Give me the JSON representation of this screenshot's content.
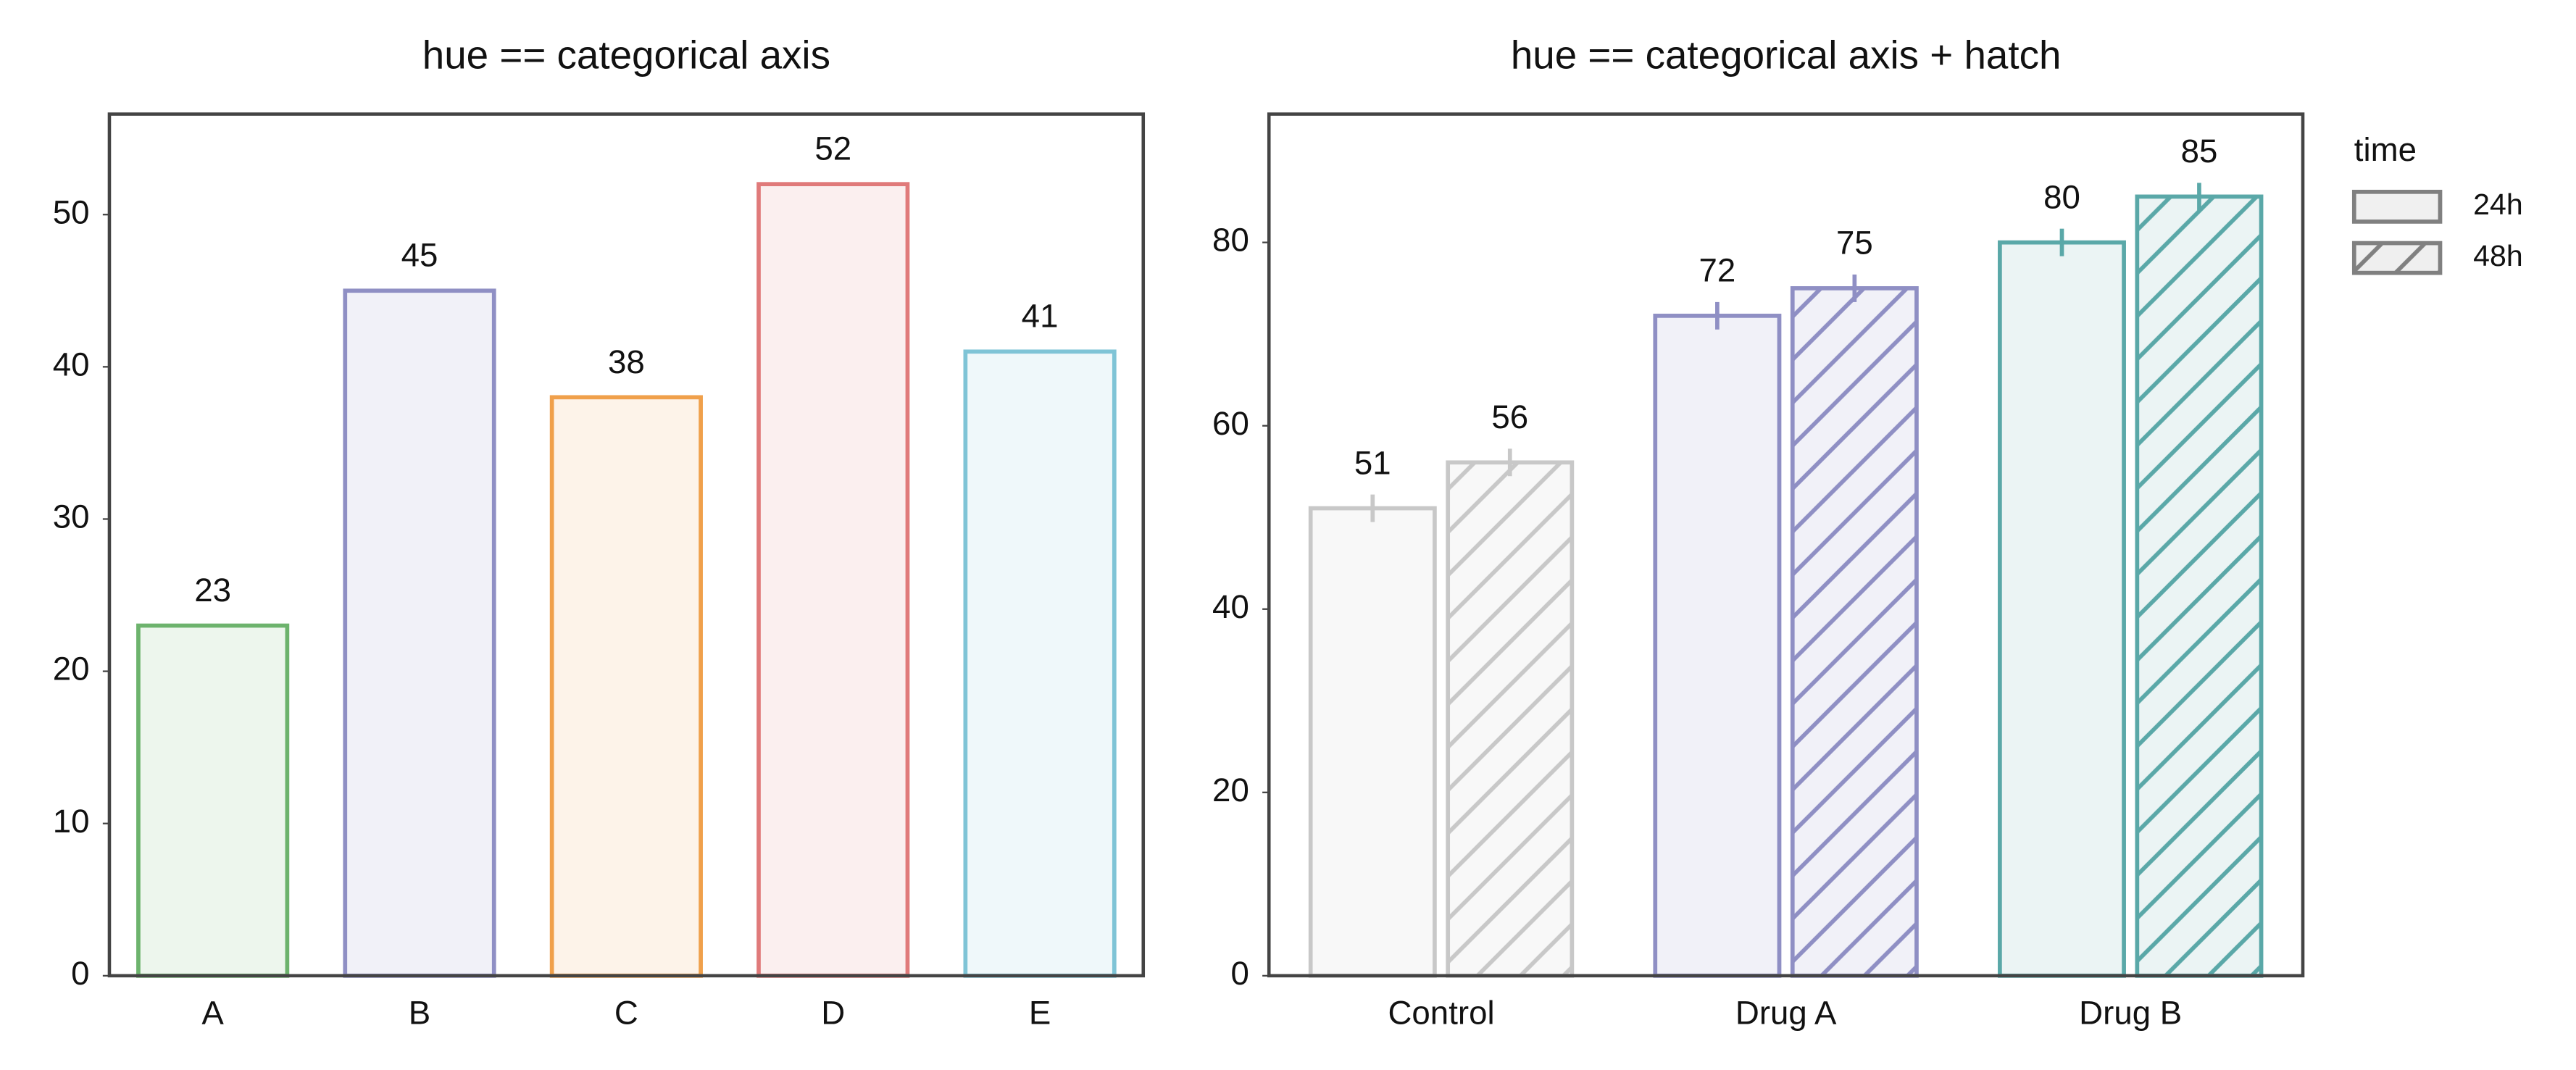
{
  "chart_data": [
    {
      "type": "bar",
      "title": "hue == categorical axis",
      "categories": [
        "A",
        "B",
        "C",
        "D",
        "E"
      ],
      "values": [
        23,
        45,
        38,
        52,
        41
      ],
      "colors": [
        "#6db36d",
        "#8f8fc4",
        "#f0a04b",
        "#e07a7a",
        "#7fc4d6"
      ],
      "ylim": [
        0,
        56.6
      ],
      "yticks": [
        0,
        10,
        20,
        30,
        40,
        50
      ]
    },
    {
      "type": "grouped_bar",
      "title": "hue == categorical axis + hatch",
      "categories": [
        "Control",
        "Drug A",
        "Drug B"
      ],
      "colors": [
        "#c8c8c8",
        "#8f8fc4",
        "#5aa8a8"
      ],
      "series": [
        {
          "name": "24h",
          "color": "#808080",
          "hatch": false,
          "values": [
            51,
            72,
            80
          ],
          "errors": [
            1.5,
            1.5,
            1.5
          ]
        },
        {
          "name": "48h",
          "color": "#808080",
          "hatch": true,
          "values": [
            56,
            75,
            85
          ],
          "errors": [
            1.5,
            1.5,
            1.5
          ]
        }
      ],
      "legend_title": "time",
      "ylim": [
        0,
        94
      ],
      "yticks": [
        0,
        20,
        40,
        60,
        80
      ]
    }
  ]
}
